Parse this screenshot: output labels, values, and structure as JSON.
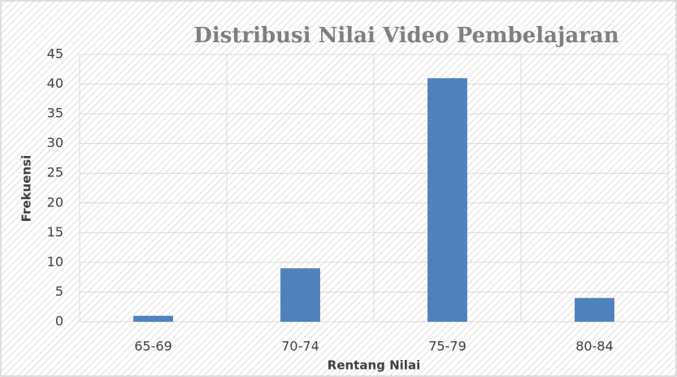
{
  "chart_data": {
    "type": "bar",
    "title": "Distribusi Nilai Video Pembelajaran",
    "x_label": "Rentang Nilai",
    "y_label": "Frekuensi",
    "categories": [
      "65-69",
      "70-74",
      "75-79",
      "80-84"
    ],
    "values": [
      1,
      9,
      41,
      4
    ],
    "color": "#4f81bd",
    "ylim": [
      0,
      45
    ],
    "yticks": [
      0,
      5,
      10,
      15,
      20,
      25,
      30,
      35,
      40,
      45
    ],
    "grid": true
  }
}
